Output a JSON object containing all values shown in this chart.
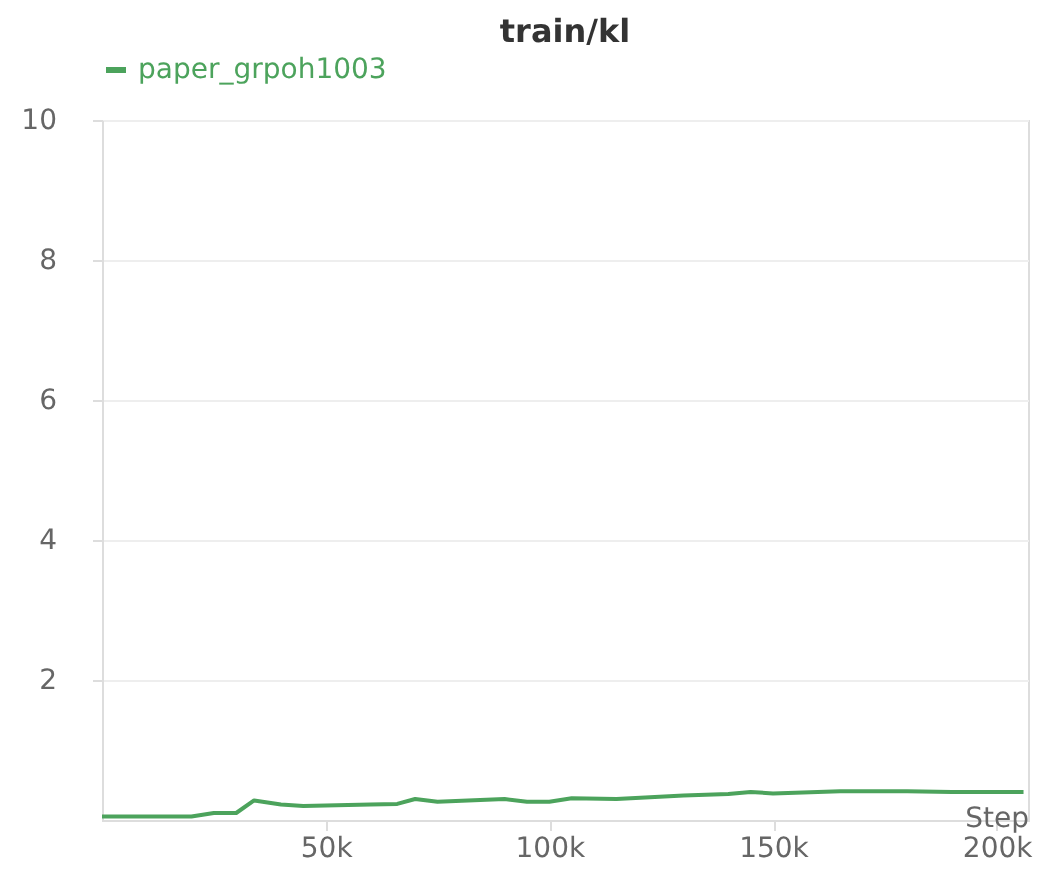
{
  "chart_data": {
    "type": "line",
    "title": "train/kl",
    "xlabel": "Step",
    "x": [
      0,
      20000,
      25000,
      30000,
      34000,
      40000,
      45000,
      60000,
      66000,
      70000,
      75000,
      90000,
      95000,
      100000,
      105000,
      115000,
      130000,
      140000,
      145000,
      150000,
      165000,
      180000,
      190000,
      200000,
      206000
    ],
    "series": [
      {
        "name": "paper_grpoh1003",
        "color": "#4ca35c",
        "values": [
          0.05,
          0.05,
          0.1,
          0.1,
          0.28,
          0.22,
          0.2,
          0.22,
          0.23,
          0.3,
          0.26,
          0.3,
          0.26,
          0.26,
          0.31,
          0.3,
          0.35,
          0.37,
          0.4,
          0.38,
          0.41,
          0.41,
          0.4,
          0.4,
          0.4
        ]
      }
    ],
    "xlim": [
      0,
      207000
    ],
    "xticks": [
      {
        "value": 50000,
        "label": "50k"
      },
      {
        "value": 100000,
        "label": "100k"
      },
      {
        "value": 150000,
        "label": "150k"
      },
      {
        "value": 200000,
        "label": "200k"
      }
    ],
    "ylim": [
      0,
      10
    ],
    "yticks": [
      2,
      4,
      6,
      8,
      10
    ],
    "grid": "y",
    "legend": "top"
  }
}
